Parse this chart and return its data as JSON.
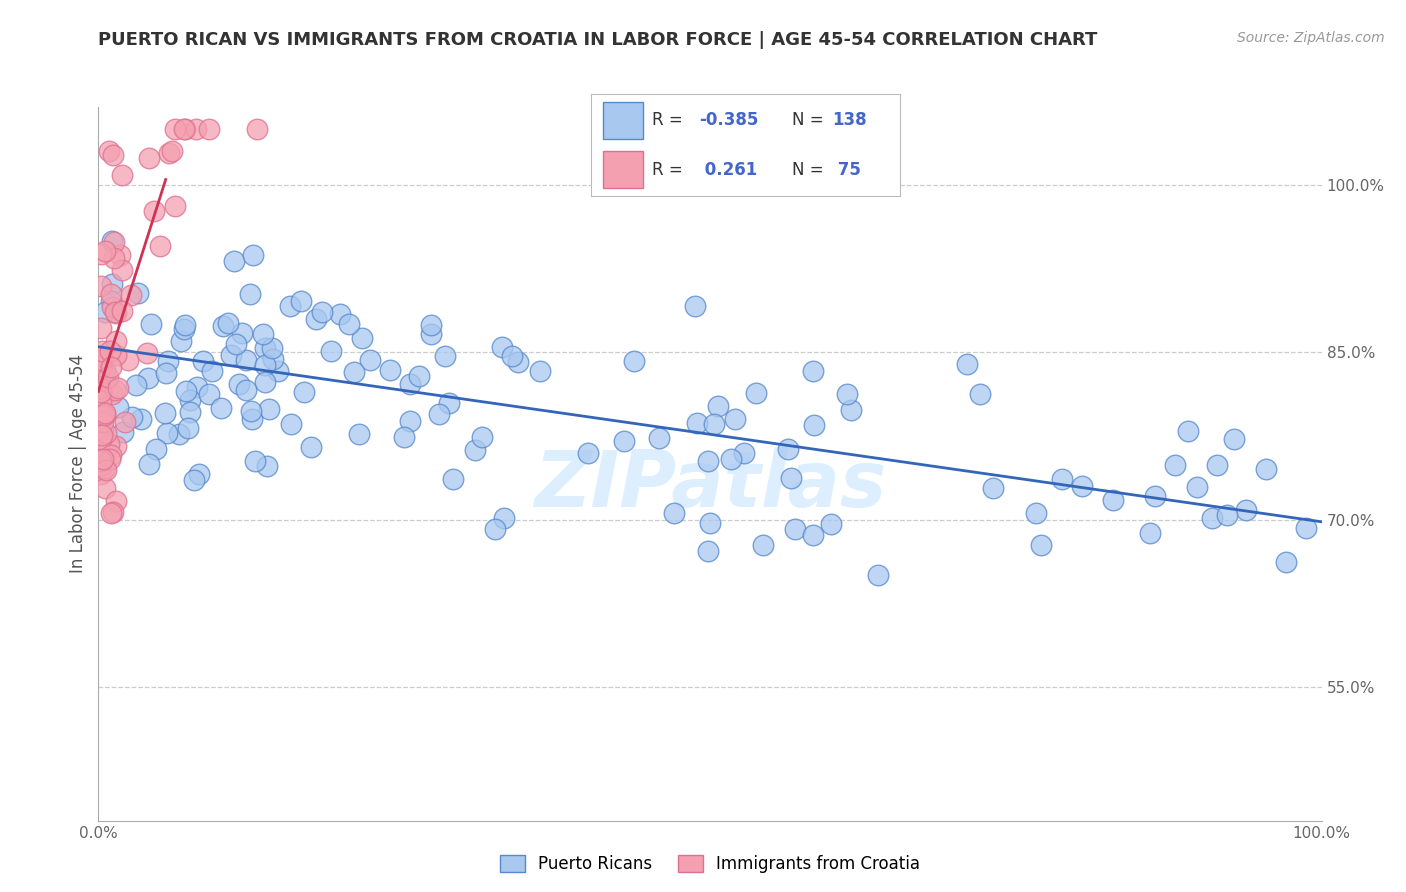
{
  "title": "PUERTO RICAN VS IMMIGRANTS FROM CROATIA IN LABOR FORCE | AGE 45-54 CORRELATION CHART",
  "source_text": "Source: ZipAtlas.com",
  "ylabel": "In Labor Force | Age 45-54",
  "blue_R": -0.385,
  "blue_N": 138,
  "pink_R": 0.261,
  "pink_N": 75,
  "blue_label": "Puerto Ricans",
  "pink_label": "Immigrants from Croatia",
  "xlim": [
    0.0,
    1.0
  ],
  "ylim": [
    0.43,
    1.07
  ],
  "right_yticks": [
    0.55,
    0.7,
    0.85,
    1.0
  ],
  "right_yticklabels": [
    "55.0%",
    "70.0%",
    "85.0%",
    "100.0%"
  ],
  "bottom_xticklabels": [
    "0.0%",
    "100.0%"
  ],
  "watermark_text": "ZIPatlas",
  "blue_color": "#a8c8f0",
  "pink_color": "#f4a0b0",
  "blue_edge_color": "#5588cc",
  "pink_edge_color": "#dd7090",
  "blue_line_color": "#3366bb",
  "pink_line_color": "#cc3355",
  "legend_R_color": "#4466cc",
  "watermark_color": "#ddeeff",
  "grid_color": "#cccccc",
  "title_color": "#333333",
  "blue_line_x0": 0.0,
  "blue_line_y0": 0.855,
  "blue_line_x1": 1.0,
  "blue_line_y1": 0.698,
  "pink_line_x0": 0.0,
  "pink_line_y0": 0.815,
  "pink_line_x1": 0.055,
  "pink_line_y1": 1.005
}
